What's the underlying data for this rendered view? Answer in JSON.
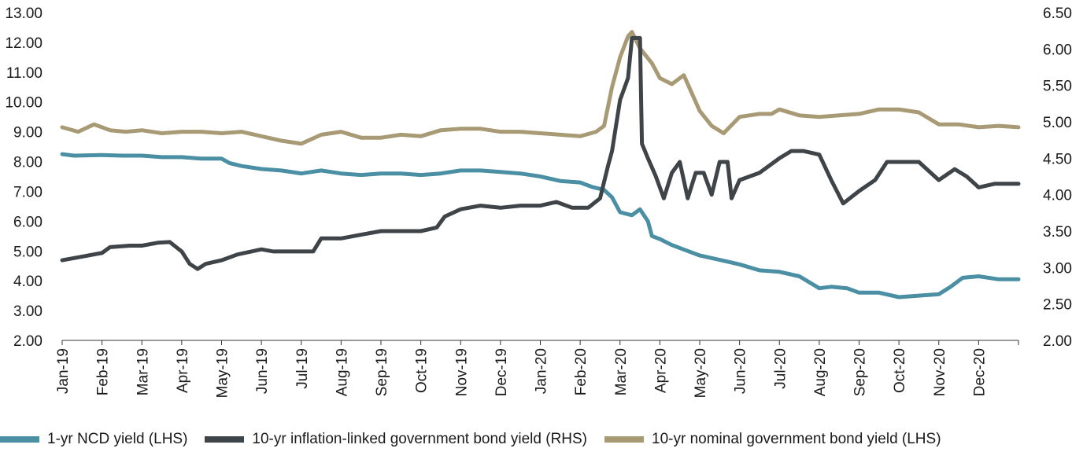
{
  "chart_data": {
    "type": "line",
    "x_labels": [
      "Jan-19",
      "Feb-19",
      "Mar-19",
      "Apr-19",
      "May-19",
      "Jun-19",
      "Jul-19",
      "Aug-19",
      "Sep-19",
      "Oct-19",
      "Nov-19",
      "Dec-19",
      "Jan-20",
      "Feb-20",
      "Mar-20",
      "Apr-20",
      "May-20",
      "Jun-20",
      "Jul-20",
      "Aug-20",
      "Sep-20",
      "Oct-20",
      "Nov-20",
      "Dec-20"
    ],
    "y_left": {
      "min": 2.0,
      "max": 13.0,
      "step": 1.0,
      "ticks": [
        "2.00",
        "3.00",
        "4.00",
        "5.00",
        "6.00",
        "7.00",
        "8.00",
        "9.00",
        "10.00",
        "11.00",
        "12.00",
        "13.00"
      ]
    },
    "y_right": {
      "min": 2.0,
      "max": 6.5,
      "step": 0.5,
      "ticks": [
        "2.00",
        "2.50",
        "3.00",
        "3.50",
        "4.00",
        "4.50",
        "5.00",
        "5.50",
        "6.00",
        "6.50"
      ]
    },
    "series": [
      {
        "name": "1-yr NCD yield (LHS)",
        "axis": "left",
        "color": "#4a8fa3",
        "points": [
          [
            0,
            8.25
          ],
          [
            0.3,
            8.2
          ],
          [
            1,
            8.22
          ],
          [
            1.5,
            8.2
          ],
          [
            2,
            8.2
          ],
          [
            2.5,
            8.15
          ],
          [
            3,
            8.15
          ],
          [
            3.5,
            8.1
          ],
          [
            4,
            8.1
          ],
          [
            4.2,
            7.95
          ],
          [
            4.5,
            7.85
          ],
          [
            5,
            7.75
          ],
          [
            5.5,
            7.7
          ],
          [
            6,
            7.6
          ],
          [
            6.5,
            7.7
          ],
          [
            7,
            7.6
          ],
          [
            7.5,
            7.55
          ],
          [
            8,
            7.6
          ],
          [
            8.5,
            7.6
          ],
          [
            9,
            7.55
          ],
          [
            9.5,
            7.6
          ],
          [
            10,
            7.7
          ],
          [
            10.5,
            7.7
          ],
          [
            11,
            7.65
          ],
          [
            11.5,
            7.6
          ],
          [
            12,
            7.5
          ],
          [
            12.5,
            7.35
          ],
          [
            13,
            7.3
          ],
          [
            13.3,
            7.15
          ],
          [
            13.6,
            7.05
          ],
          [
            13.8,
            6.8
          ],
          [
            14,
            6.3
          ],
          [
            14.3,
            6.2
          ],
          [
            14.5,
            6.4
          ],
          [
            14.7,
            6.0
          ],
          [
            14.8,
            5.5
          ],
          [
            15,
            5.4
          ],
          [
            15.3,
            5.2
          ],
          [
            15.7,
            5.0
          ],
          [
            16,
            4.85
          ],
          [
            16.5,
            4.7
          ],
          [
            17,
            4.55
          ],
          [
            17.5,
            4.35
          ],
          [
            18,
            4.3
          ],
          [
            18.5,
            4.15
          ],
          [
            19,
            3.75
          ],
          [
            19.3,
            3.8
          ],
          [
            19.7,
            3.75
          ],
          [
            20,
            3.6
          ],
          [
            20.5,
            3.6
          ],
          [
            21,
            3.45
          ],
          [
            21.5,
            3.5
          ],
          [
            22,
            3.55
          ],
          [
            22.3,
            3.8
          ],
          [
            22.6,
            4.1
          ],
          [
            23,
            4.15
          ],
          [
            23.5,
            4.05
          ],
          [
            24,
            4.05
          ]
        ]
      },
      {
        "name": "10-yr inflation-linked government bond yield (RHS)",
        "axis": "right",
        "color": "#3f4449",
        "points": [
          [
            0,
            3.1
          ],
          [
            0.5,
            3.15
          ],
          [
            1,
            3.2
          ],
          [
            1.2,
            3.28
          ],
          [
            1.7,
            3.3
          ],
          [
            2,
            3.3
          ],
          [
            2.4,
            3.34
          ],
          [
            2.7,
            3.35
          ],
          [
            3,
            3.22
          ],
          [
            3.2,
            3.05
          ],
          [
            3.4,
            2.98
          ],
          [
            3.6,
            3.05
          ],
          [
            4,
            3.1
          ],
          [
            4.4,
            3.18
          ],
          [
            5,
            3.25
          ],
          [
            5.3,
            3.22
          ],
          [
            6,
            3.22
          ],
          [
            6.3,
            3.22
          ],
          [
            6.5,
            3.4
          ],
          [
            7,
            3.4
          ],
          [
            7.5,
            3.45
          ],
          [
            8,
            3.5
          ],
          [
            8.5,
            3.5
          ],
          [
            9,
            3.5
          ],
          [
            9.4,
            3.55
          ],
          [
            9.6,
            3.7
          ],
          [
            10,
            3.8
          ],
          [
            10.5,
            3.85
          ],
          [
            11,
            3.82
          ],
          [
            11.5,
            3.85
          ],
          [
            12,
            3.85
          ],
          [
            12.4,
            3.9
          ],
          [
            12.8,
            3.82
          ],
          [
            13.2,
            3.82
          ],
          [
            13.5,
            3.95
          ],
          [
            13.7,
            4.4
          ],
          [
            13.8,
            4.6
          ],
          [
            14,
            5.3
          ],
          [
            14.2,
            5.6
          ],
          [
            14.3,
            6.15
          ],
          [
            14.5,
            6.15
          ],
          [
            14.55,
            4.7
          ],
          [
            14.7,
            4.5
          ],
          [
            14.9,
            4.25
          ],
          [
            15.1,
            3.95
          ],
          [
            15.3,
            4.3
          ],
          [
            15.5,
            4.45
          ],
          [
            15.7,
            3.95
          ],
          [
            15.9,
            4.3
          ],
          [
            16.1,
            4.3
          ],
          [
            16.3,
            4.0
          ],
          [
            16.5,
            4.45
          ],
          [
            16.7,
            4.45
          ],
          [
            16.8,
            3.95
          ],
          [
            17,
            4.2
          ],
          [
            17.5,
            4.3
          ],
          [
            18,
            4.5
          ],
          [
            18.3,
            4.6
          ],
          [
            18.6,
            4.6
          ],
          [
            19,
            4.55
          ],
          [
            19.3,
            4.2
          ],
          [
            19.6,
            3.88
          ],
          [
            20,
            4.05
          ],
          [
            20.4,
            4.2
          ],
          [
            20.7,
            4.45
          ],
          [
            21,
            4.45
          ],
          [
            21.5,
            4.45
          ],
          [
            22,
            4.2
          ],
          [
            22.4,
            4.35
          ],
          [
            22.7,
            4.25
          ],
          [
            23,
            4.1
          ],
          [
            23.4,
            4.15
          ],
          [
            24,
            4.15
          ]
        ]
      },
      {
        "name": "10-yr nominal government bond yield (LHS)",
        "axis": "left",
        "color": "#a89a75",
        "points": [
          [
            0,
            9.15
          ],
          [
            0.4,
            9.0
          ],
          [
            0.8,
            9.25
          ],
          [
            1.2,
            9.05
          ],
          [
            1.6,
            9.0
          ],
          [
            2,
            9.05
          ],
          [
            2.5,
            8.95
          ],
          [
            3,
            9.0
          ],
          [
            3.5,
            9.0
          ],
          [
            4,
            8.95
          ],
          [
            4.5,
            9.0
          ],
          [
            5,
            8.85
          ],
          [
            5.5,
            8.7
          ],
          [
            6,
            8.6
          ],
          [
            6.5,
            8.9
          ],
          [
            7,
            9.0
          ],
          [
            7.5,
            8.8
          ],
          [
            8,
            8.8
          ],
          [
            8.5,
            8.9
          ],
          [
            9,
            8.85
          ],
          [
            9.5,
            9.05
          ],
          [
            10,
            9.1
          ],
          [
            10.5,
            9.1
          ],
          [
            11,
            9.0
          ],
          [
            11.5,
            9.0
          ],
          [
            12,
            8.95
          ],
          [
            12.5,
            8.9
          ],
          [
            13,
            8.85
          ],
          [
            13.4,
            9.0
          ],
          [
            13.6,
            9.2
          ],
          [
            13.8,
            10.5
          ],
          [
            14,
            11.5
          ],
          [
            14.2,
            12.2
          ],
          [
            14.3,
            12.35
          ],
          [
            14.5,
            11.8
          ],
          [
            14.8,
            11.3
          ],
          [
            15,
            10.8
          ],
          [
            15.3,
            10.6
          ],
          [
            15.6,
            10.9
          ],
          [
            15.8,
            10.3
          ],
          [
            16,
            9.7
          ],
          [
            16.3,
            9.2
          ],
          [
            16.6,
            8.95
          ],
          [
            17,
            9.5
          ],
          [
            17.5,
            9.6
          ],
          [
            17.8,
            9.6
          ],
          [
            18,
            9.75
          ],
          [
            18.5,
            9.55
          ],
          [
            19,
            9.5
          ],
          [
            19.5,
            9.55
          ],
          [
            20,
            9.6
          ],
          [
            20.5,
            9.75
          ],
          [
            21,
            9.75
          ],
          [
            21.5,
            9.65
          ],
          [
            22,
            9.25
          ],
          [
            22.5,
            9.25
          ],
          [
            23,
            9.15
          ],
          [
            23.5,
            9.2
          ],
          [
            24,
            9.15
          ]
        ]
      }
    ]
  }
}
